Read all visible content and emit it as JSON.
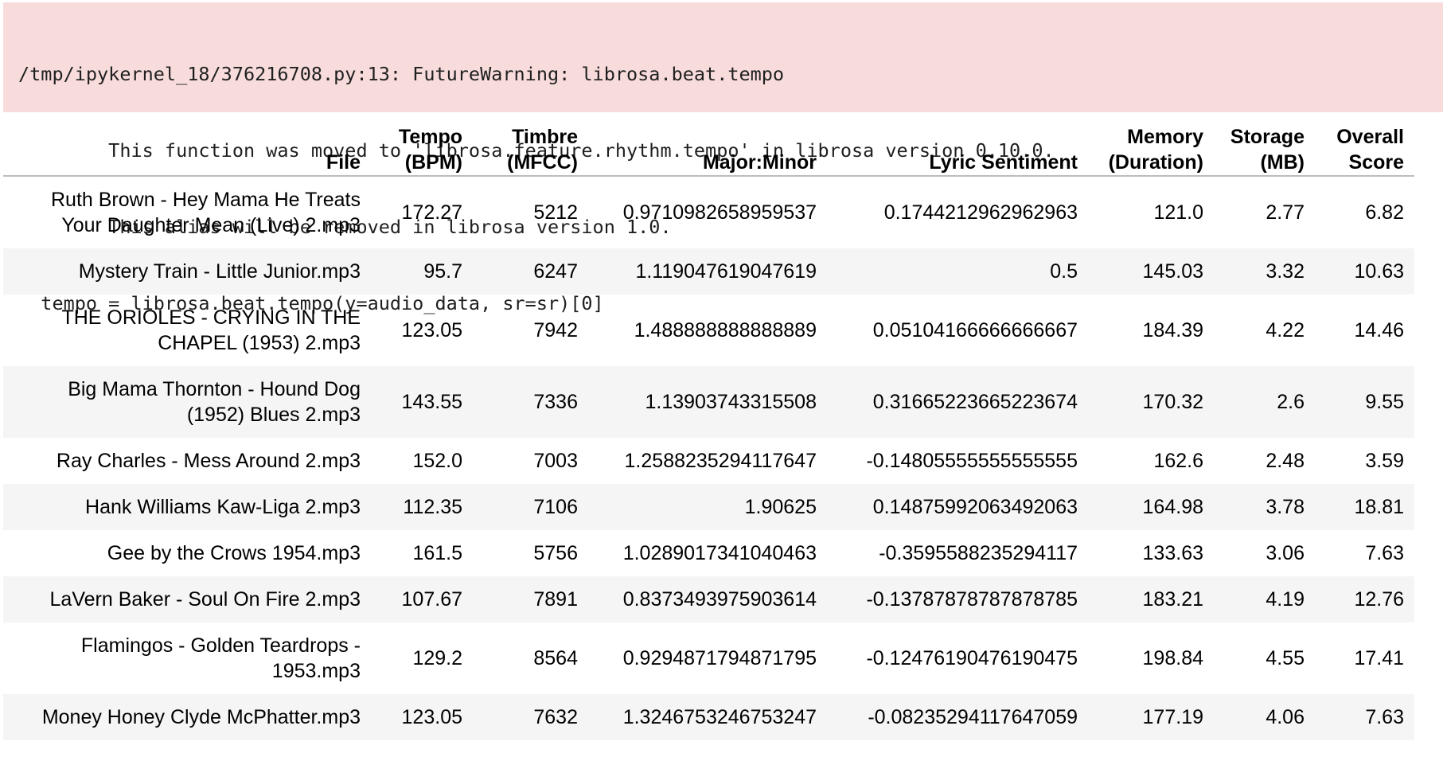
{
  "warning": {
    "lines": [
      "/tmp/ipykernel_18/376216708.py:13: FutureWarning: librosa.beat.tempo",
      "        This function was moved to 'librosa.feature.rhythm.tempo' in librosa version 0.10.0.",
      "        This alias will be removed in librosa version 1.0.",
      "  tempo = librosa.beat.tempo(y=audio_data, sr=sr)[0]"
    ]
  },
  "table": {
    "columns": [
      [
        "File"
      ],
      [
        "Tempo",
        "(BPM)"
      ],
      [
        "Timbre",
        "(MFCC)"
      ],
      [
        "Major:Minor"
      ],
      [
        "Lyric Sentiment"
      ],
      [
        "Memory",
        "(Duration)"
      ],
      [
        "Storage",
        "(MB)"
      ],
      [
        "Overall",
        "Score"
      ]
    ],
    "rows": [
      {
        "file": [
          "Ruth Brown - Hey Mama He Treats",
          "Your Daughter Mean (Live) 2.mp3"
        ],
        "tempo": "172.27",
        "timbre": "5212",
        "major_minor": "0.9710982658959537",
        "sentiment": "0.1744212962962963",
        "memory": "121.0",
        "storage": "2.77",
        "score": "6.82"
      },
      {
        "file": [
          "Mystery Train - Little Junior.mp3"
        ],
        "tempo": "95.7",
        "timbre": "6247",
        "major_minor": "1.119047619047619",
        "sentiment": "0.5",
        "memory": "145.03",
        "storage": "3.32",
        "score": "10.63"
      },
      {
        "file": [
          "THE ORIOLES - CRYING IN THE",
          "CHAPEL (1953) 2.mp3"
        ],
        "tempo": "123.05",
        "timbre": "7942",
        "major_minor": "1.488888888888889",
        "sentiment": "0.05104166666666667",
        "memory": "184.39",
        "storage": "4.22",
        "score": "14.46"
      },
      {
        "file": [
          "Big Mama Thornton - Hound Dog",
          "(1952) Blues 2.mp3"
        ],
        "tempo": "143.55",
        "timbre": "7336",
        "major_minor": "1.13903743315508",
        "sentiment": "0.31665223665223674",
        "memory": "170.32",
        "storage": "2.6",
        "score": "9.55"
      },
      {
        "file": [
          "Ray Charles - Mess Around 2.mp3"
        ],
        "tempo": "152.0",
        "timbre": "7003",
        "major_minor": "1.2588235294117647",
        "sentiment": "-0.14805555555555555",
        "memory": "162.6",
        "storage": "2.48",
        "score": "3.59"
      },
      {
        "file": [
          "Hank Williams Kaw-Liga 2.mp3"
        ],
        "tempo": "112.35",
        "timbre": "7106",
        "major_minor": "1.90625",
        "sentiment": "0.14875992063492063",
        "memory": "164.98",
        "storage": "3.78",
        "score": "18.81"
      },
      {
        "file": [
          "Gee by the Crows 1954.mp3"
        ],
        "tempo": "161.5",
        "timbre": "5756",
        "major_minor": "1.0289017341040463",
        "sentiment": "-0.3595588235294117",
        "memory": "133.63",
        "storage": "3.06",
        "score": "7.63"
      },
      {
        "file": [
          "LaVern Baker - Soul On Fire 2.mp3"
        ],
        "tempo": "107.67",
        "timbre": "7891",
        "major_minor": "0.8373493975903614",
        "sentiment": "-0.13787878787878785",
        "memory": "183.21",
        "storage": "4.19",
        "score": "12.76"
      },
      {
        "file": [
          "Flamingos - Golden Teardrops -",
          "1953.mp3"
        ],
        "tempo": "129.2",
        "timbre": "8564",
        "major_minor": "0.9294871794871795",
        "sentiment": "-0.12476190476190475",
        "memory": "198.84",
        "storage": "4.55",
        "score": "17.41"
      },
      {
        "file": [
          "Money Honey Clyde McPhatter.mp3"
        ],
        "tempo": "123.05",
        "timbre": "7632",
        "major_minor": "1.3246753246753247",
        "sentiment": "-0.08235294117647059",
        "memory": "177.19",
        "storage": "4.06",
        "score": "7.63"
      }
    ]
  },
  "colors": {
    "warning_bg": "#f8dcdc",
    "striped_row_bg": "#f5f5f5",
    "header_rule": "#bdbdbd"
  }
}
